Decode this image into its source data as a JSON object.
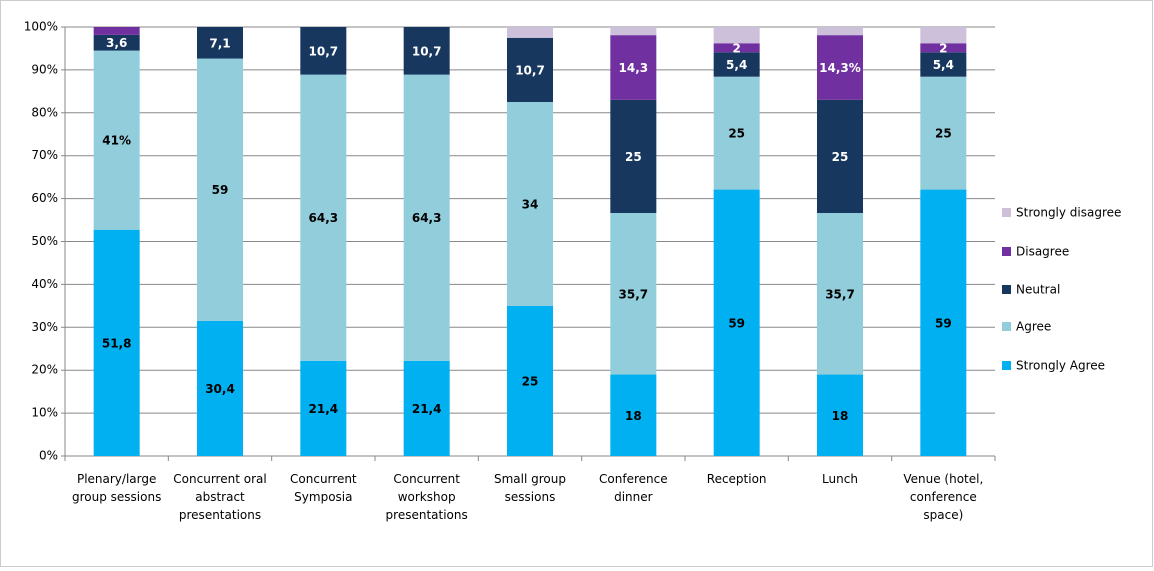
{
  "chart_data": {
    "type": "bar",
    "stacking": "percent",
    "categories": [
      "Plenary/large group sessions",
      "Concurrent oral abstract presentations",
      "Concurrent Symposia",
      "Concurrent workshop presentations",
      "Small group sessions",
      "Conference dinner",
      "Reception",
      "Lunch",
      "Venue (hotel, conference space)"
    ],
    "series": [
      {
        "name": "Strongly Agree",
        "color": "#00b0f0",
        "values": [
          51.8,
          30.4,
          21.4,
          21.4,
          25,
          18,
          59,
          18,
          59
        ],
        "value_labels": [
          "51,8",
          "30,4",
          "21,4",
          "21,4",
          "25",
          "18",
          "59",
          "18",
          "59"
        ]
      },
      {
        "name": "Agree",
        "color": "#92cddc",
        "values": [
          41,
          59,
          64.3,
          64.3,
          34,
          35.7,
          25,
          35.7,
          25
        ],
        "value_labels": [
          "41%",
          "59",
          "64,3",
          "64,3",
          "34",
          "35,7",
          "25",
          "35,7",
          "25"
        ]
      },
      {
        "name": "Neutral",
        "color": "#17375e",
        "values": [
          3.6,
          7.1,
          10.7,
          10.7,
          10.7,
          25,
          5.4,
          25,
          5.4
        ],
        "value_labels": [
          "3,6",
          "7,1",
          "10,7",
          "10,7",
          "10,7",
          "25",
          "5,4",
          "25",
          "5,4"
        ]
      },
      {
        "name": "Disagree",
        "color": "#7030a0",
        "values": [
          1.8,
          0,
          0,
          0,
          0,
          14.3,
          2,
          14.3,
          2
        ],
        "value_labels": [
          null,
          null,
          null,
          null,
          null,
          "14,3",
          "2",
          "14,3%",
          "2"
        ]
      },
      {
        "name": "Strongly disagree",
        "color": "#ccc0da",
        "values": [
          0,
          0,
          0,
          0,
          1.8,
          1.8,
          3.6,
          1.8,
          3.6
        ]
      }
    ],
    "ylim": [
      0,
      100
    ],
    "yticks": [
      {
        "value": 0,
        "label": "0%"
      },
      {
        "value": 10,
        "label": "10%"
      },
      {
        "value": 20,
        "label": "20%"
      },
      {
        "value": 30,
        "label": "30%"
      },
      {
        "value": 40,
        "label": "40%"
      },
      {
        "value": 50,
        "label": "50%"
      },
      {
        "value": 60,
        "label": "60%"
      },
      {
        "value": 70,
        "label": "70%"
      },
      {
        "value": 80,
        "label": "80%"
      },
      {
        "value": 90,
        "label": "90%"
      },
      {
        "value": 100,
        "label": "100%"
      }
    ],
    "grid": true,
    "legend": "right"
  }
}
